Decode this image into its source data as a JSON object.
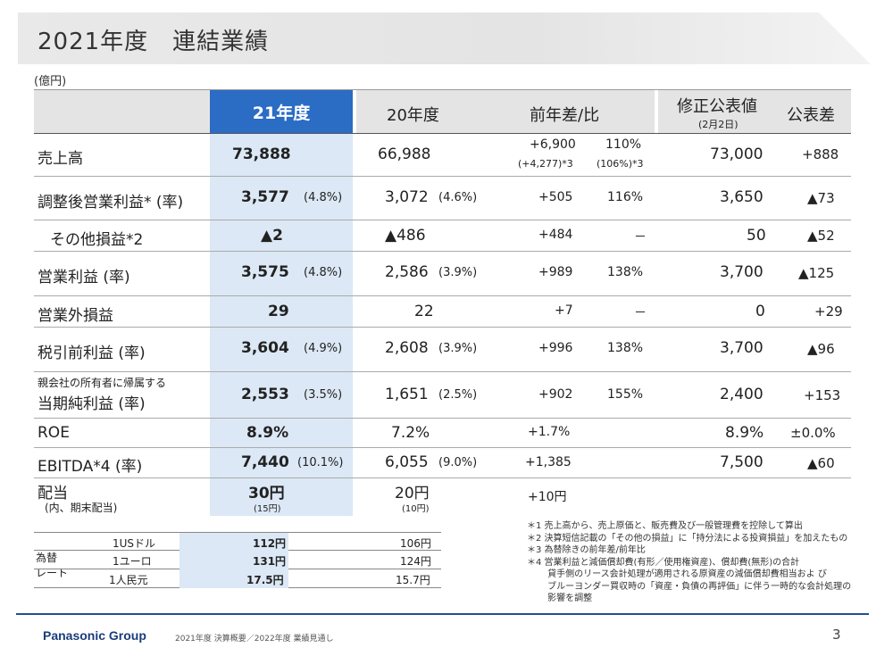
{
  "title": "2021年度　連結業績",
  "unit": "(億円)",
  "header": {
    "col21": "21年度",
    "col20": "20年度",
    "diff": "前年差/比",
    "revised": "修正公表値",
    "revised_date": "(2月2日)",
    "gap": "公表差"
  },
  "rows": [
    {
      "label": "売上高",
      "v21": "73,888",
      "r21": "",
      "v20": "66,988",
      "r20": "",
      "diff": "+6,900",
      "diff_sub": "(+4,277)*3",
      "ratio": "110%",
      "ratio_sub": "(106%)*3",
      "revised": "73,000",
      "gap": "+888"
    },
    {
      "label": "調整後営業利益* (率)",
      "v21": "3,577",
      "r21": "(4.8%)",
      "v20": "3,072",
      "r20": "(4.6%)",
      "diff": "+505",
      "ratio": "116%",
      "revised": "3,650",
      "gap": "▲73"
    },
    {
      "label": "その他損益*2",
      "v21": "▲2",
      "r21": "",
      "v20": "▲486",
      "r20": "",
      "diff": "+484",
      "ratio": "－",
      "revised": "50",
      "gap": "▲52"
    },
    {
      "label": "営業利益 (率)",
      "v21": "3,575",
      "r21": "(4.8%)",
      "v20": "2,586",
      "r20": "(3.9%)",
      "diff": "+989",
      "ratio": "138%",
      "revised": "3,700",
      "gap": "▲125"
    },
    {
      "label": "営業外損益",
      "v21": "29",
      "r21": "",
      "v20": "22",
      "r20": "",
      "diff": "+7",
      "ratio": "－",
      "revised": "0",
      "gap": "+29"
    },
    {
      "label": "税引前利益 (率)",
      "v21": "3,604",
      "r21": "(4.9%)",
      "v20": "2,608",
      "r20": "(3.9%)",
      "diff": "+996",
      "ratio": "138%",
      "revised": "3,700",
      "gap": "▲96"
    },
    {
      "label_small": "親会社の所有者に帰属する",
      "label": "当期純利益 (率)",
      "v21": "2,553",
      "r21": "(3.5%)",
      "v20": "1,651",
      "r20": "(2.5%)",
      "diff": "+902",
      "ratio": "155%",
      "revised": "2,400",
      "gap": "+153"
    },
    {
      "label": "ROE",
      "v21": "8.9%",
      "r21": "",
      "v20": "7.2%",
      "r20": "",
      "diff": "+1.7%",
      "ratio": "",
      "revised": "8.9%",
      "gap": "±0.0%"
    },
    {
      "label": "EBITDA*4 (率)",
      "v21": "7,440",
      "r21": "(10.1%)",
      "v20": "6,055",
      "r20": "(9.0%)",
      "diff": "+1,385",
      "ratio": "",
      "revised": "7,500",
      "gap": "▲60"
    },
    {
      "label": "配当",
      "label_sub": "(内、期末配当)",
      "v21": "30円",
      "r21_sub": "(15円)",
      "v20": "20円",
      "r20_sub": "(10円)",
      "diff": "+10円",
      "ratio": "",
      "revised": "",
      "gap": ""
    }
  ],
  "fx": {
    "label_line1": "為替",
    "label_line2": "レート",
    "rows": [
      {
        "currency": "1USドル",
        "v21": "112円",
        "v20": "106円"
      },
      {
        "currency": "1ユーロ",
        "v21": "131円",
        "v20": "124円"
      },
      {
        "currency": "1人民元",
        "v21": "17.5円",
        "v20": "15.7円"
      }
    ]
  },
  "notes": [
    "＊1  売上高から、売上原価と、販売費及び一般管理費を控除して算出",
    "＊2  決算短信記載の「その他の損益」に「持分法による投資損益」を加えたもの",
    "＊3  為替除きの前年差/前年比",
    "＊4  営業利益と減価償却費(有形／使用権資産)、償却費(無形)の合計",
    "　　 貸手側のリース会計処理が適用される原資産の減価償却費相当およ び",
    "　　 ブルーヨンダー買収時の「資産・負債の再評価」に伴う一時的な会計処理の",
    "　　 影響を調整"
  ],
  "footer": {
    "brand": "Panasonic Group",
    "text": "2021年度 決算概要／2022年度 業績見通し",
    "page": "3"
  }
}
